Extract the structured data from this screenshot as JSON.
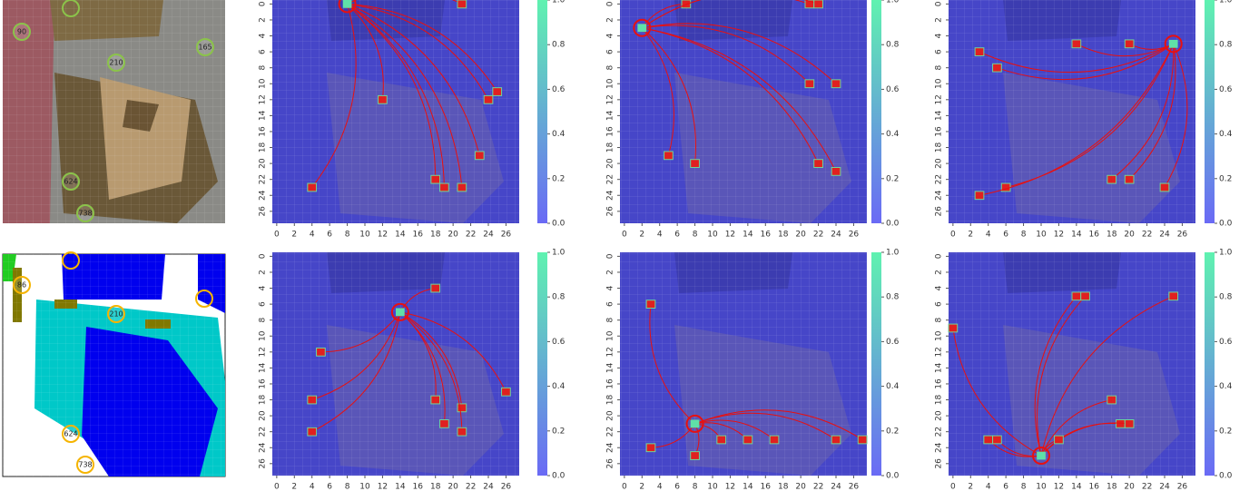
{
  "images": [
    {
      "labels": [
        "90",
        "165",
        "210",
        "624",
        "738"
      ]
    },
    {
      "labels": [
        "86",
        "210",
        "624",
        "738"
      ]
    }
  ],
  "chart_data": [
    {
      "type": "heatmap",
      "xlim": [
        -0.5,
        27.5
      ],
      "ylim": [
        -0.5,
        27.5
      ],
      "xticks": [
        0,
        2,
        4,
        6,
        8,
        10,
        12,
        14,
        16,
        18,
        20,
        22,
        24,
        26
      ],
      "yticks": [
        0,
        2,
        4,
        6,
        8,
        10,
        12,
        14,
        16,
        18,
        20,
        22,
        24,
        26
      ],
      "colorbar": {
        "lim": [
          0,
          1
        ],
        "ticks": [
          {
            "value": 0,
            "label": "0.0"
          },
          0.2,
          0.4,
          0.6,
          0.8,
          {
            "value": 1,
            "label": "1.0"
          }
        ],
        "colors": [
          "#6a6af5",
          "#5ff2b0"
        ]
      },
      "source": {
        "x": 8,
        "y": 0
      },
      "targets": {
        "x": [
          21,
          25,
          24,
          12,
          23,
          18,
          19,
          21,
          4
        ],
        "y": [
          0,
          11,
          12,
          12,
          19,
          22,
          23,
          23,
          23
        ]
      }
    },
    {
      "type": "heatmap",
      "xlim": [
        -0.5,
        27.5
      ],
      "ylim": [
        -0.5,
        27.5
      ],
      "xticks": [
        0,
        2,
        4,
        6,
        8,
        10,
        12,
        14,
        16,
        18,
        20,
        22,
        24,
        26
      ],
      "yticks": [
        0,
        2,
        4,
        6,
        8,
        10,
        12,
        14,
        16,
        18,
        20,
        22,
        24,
        26
      ],
      "colorbar": {
        "lim": [
          0,
          1
        ],
        "ticks": [
          {
            "value": 0,
            "label": "0.0"
          },
          0.2,
          0.4,
          0.6,
          0.8,
          {
            "value": 1,
            "label": "1.0"
          }
        ],
        "colors": [
          "#6a6af5",
          "#5ff2b0"
        ]
      },
      "source": {
        "x": 2,
        "y": 3
      },
      "targets": {
        "x": [
          7,
          21,
          22,
          21,
          24,
          5,
          8,
          22,
          24
        ],
        "y": [
          0,
          0,
          0,
          10,
          10,
          19,
          20,
          20,
          21
        ]
      }
    },
    {
      "type": "heatmap",
      "xlim": [
        -0.5,
        27.5
      ],
      "ylim": [
        -0.5,
        27.5
      ],
      "xticks": [
        0,
        2,
        4,
        6,
        8,
        10,
        12,
        14,
        16,
        18,
        20,
        22,
        24,
        26
      ],
      "yticks": [
        0,
        2,
        4,
        6,
        8,
        10,
        12,
        14,
        16,
        18,
        20,
        22,
        24,
        26
      ],
      "colorbar": {
        "lim": [
          0,
          1
        ],
        "ticks": [
          {
            "value": 0,
            "label": "0.0"
          },
          0.2,
          0.4,
          0.6,
          0.8,
          {
            "value": 1,
            "label": "1.0"
          }
        ],
        "colors": [
          "#6a6af5",
          "#5ff2b0"
        ]
      },
      "source": {
        "x": 25,
        "y": 5
      },
      "targets": {
        "x": [
          3,
          5,
          14,
          20,
          18,
          20,
          6,
          24,
          3
        ],
        "y": [
          6,
          8,
          5,
          5,
          22,
          22,
          23,
          23,
          24
        ]
      }
    },
    {
      "type": "heatmap",
      "xlim": [
        -0.5,
        27.5
      ],
      "ylim": [
        -0.5,
        27.5
      ],
      "xticks": [
        0,
        2,
        4,
        6,
        8,
        10,
        12,
        14,
        16,
        18,
        20,
        22,
        24,
        26
      ],
      "yticks": [
        0,
        2,
        4,
        6,
        8,
        10,
        12,
        14,
        16,
        18,
        20,
        22,
        24,
        26
      ],
      "colorbar": {
        "lim": [
          0,
          1
        ],
        "ticks": [
          {
            "value": 0,
            "label": "0.0"
          },
          0.2,
          0.4,
          0.6,
          0.8,
          {
            "value": 1,
            "label": "1.0"
          }
        ],
        "colors": [
          "#6a6af5",
          "#5ff2b0"
        ]
      },
      "source": {
        "x": 14,
        "y": 7
      },
      "targets": {
        "x": [
          18,
          5,
          4,
          18,
          21,
          26,
          19,
          4,
          21
        ],
        "y": [
          4,
          12,
          18,
          18,
          19,
          17,
          21,
          22,
          22
        ]
      }
    },
    {
      "type": "heatmap",
      "xlim": [
        -0.5,
        27.5
      ],
      "ylim": [
        -0.5,
        27.5
      ],
      "xticks": [
        0,
        2,
        4,
        6,
        8,
        10,
        12,
        14,
        16,
        18,
        20,
        22,
        24,
        26
      ],
      "yticks": [
        0,
        2,
        4,
        6,
        8,
        10,
        12,
        14,
        16,
        18,
        20,
        22,
        24,
        26
      ],
      "colorbar": {
        "lim": [
          0,
          1
        ],
        "ticks": [
          {
            "value": 0,
            "label": "0.0"
          },
          0.2,
          0.4,
          0.6,
          0.8,
          {
            "value": 1,
            "label": "1.0"
          }
        ],
        "colors": [
          "#6a6af5",
          "#5ff2b0"
        ]
      },
      "source": {
        "x": 8,
        "y": 21
      },
      "targets": {
        "x": [
          3,
          3,
          8,
          11,
          14,
          17,
          24,
          27
        ],
        "y": [
          6,
          24,
          25,
          23,
          23,
          23,
          23,
          23
        ]
      }
    },
    {
      "type": "heatmap",
      "xlim": [
        -0.5,
        27.5
      ],
      "ylim": [
        -0.5,
        27.5
      ],
      "xticks": [
        0,
        2,
        4,
        6,
        8,
        10,
        12,
        14,
        16,
        18,
        20,
        22,
        24,
        26
      ],
      "yticks": [
        0,
        2,
        4,
        6,
        8,
        10,
        12,
        14,
        16,
        18,
        20,
        22,
        24,
        26
      ],
      "colorbar": {
        "lim": [
          0,
          1
        ],
        "ticks": [
          {
            "value": 0,
            "label": "0.0"
          },
          0.2,
          0.4,
          0.6,
          0.8,
          {
            "value": 1,
            "label": "1.0"
          }
        ],
        "colors": [
          "#6a6af5",
          "#5ff2b0"
        ]
      },
      "source": {
        "x": 10,
        "y": 25
      },
      "targets": {
        "x": [
          14,
          15,
          25,
          0,
          18,
          19,
          20,
          4,
          5,
          12
        ],
        "y": [
          5,
          5,
          5,
          9,
          18,
          21,
          21,
          23,
          23,
          23
        ]
      }
    }
  ]
}
